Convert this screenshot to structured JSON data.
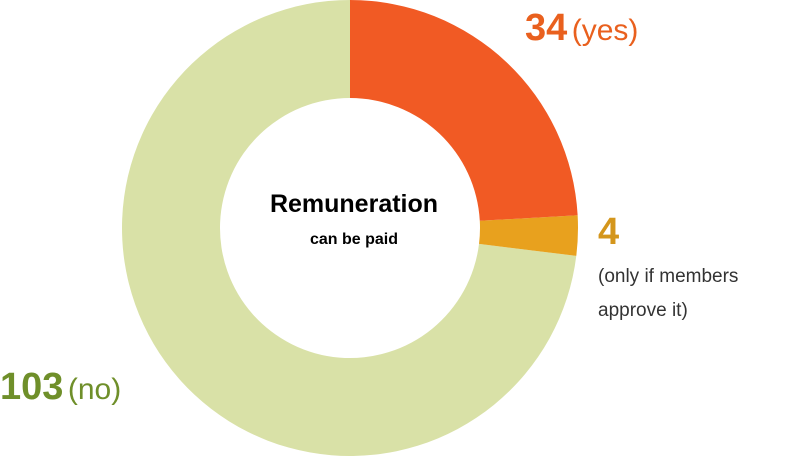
{
  "chart_data": {
    "type": "donut",
    "title": "Remuneration",
    "subtitle": "can be paid",
    "categories": [
      "(yes)",
      "(only if members approve it)",
      "(no)"
    ],
    "values": [
      34,
      4,
      103
    ],
    "colors": [
      "#f15a24",
      "#e8a11e",
      "#d9e1a7"
    ],
    "label_colors": [
      "#e9601e",
      "#d4961c",
      "#6f8f2a"
    ]
  }
}
